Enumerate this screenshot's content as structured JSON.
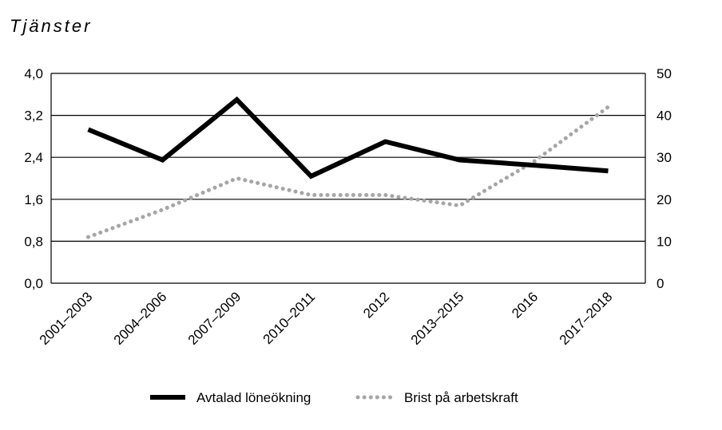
{
  "page": {
    "title": "Tjänster"
  },
  "chart_data": {
    "type": "line",
    "categories": [
      "2001–2003",
      "2004–2006",
      "2007–2009",
      "2010–2011",
      "2012",
      "2013–2015",
      "2016",
      "2017–2018"
    ],
    "y_left": {
      "ylim": [
        0,
        4.0
      ],
      "ticks": [
        "0,0",
        "0,8",
        "1,6",
        "2,4",
        "3,2",
        "4,0"
      ]
    },
    "y_right": {
      "ylim": [
        0,
        50
      ],
      "ticks": [
        "0",
        "10",
        "20",
        "30",
        "40",
        "50"
      ]
    },
    "grid": "horizontal",
    "legend_position": "bottom",
    "series": [
      {
        "name": "Avtalad löneökning",
        "axis": "left",
        "style": "solid",
        "color": "#000000",
        "values": [
          2.93,
          2.35,
          3.5,
          2.04,
          2.7,
          2.35,
          2.25,
          2.14
        ]
      },
      {
        "name": "Brist på arbetskraft",
        "axis": "right",
        "style": "dotted",
        "color": "#a6a6a6",
        "values": [
          11,
          17.5,
          25,
          21,
          21,
          18.5,
          29,
          42
        ]
      }
    ]
  }
}
